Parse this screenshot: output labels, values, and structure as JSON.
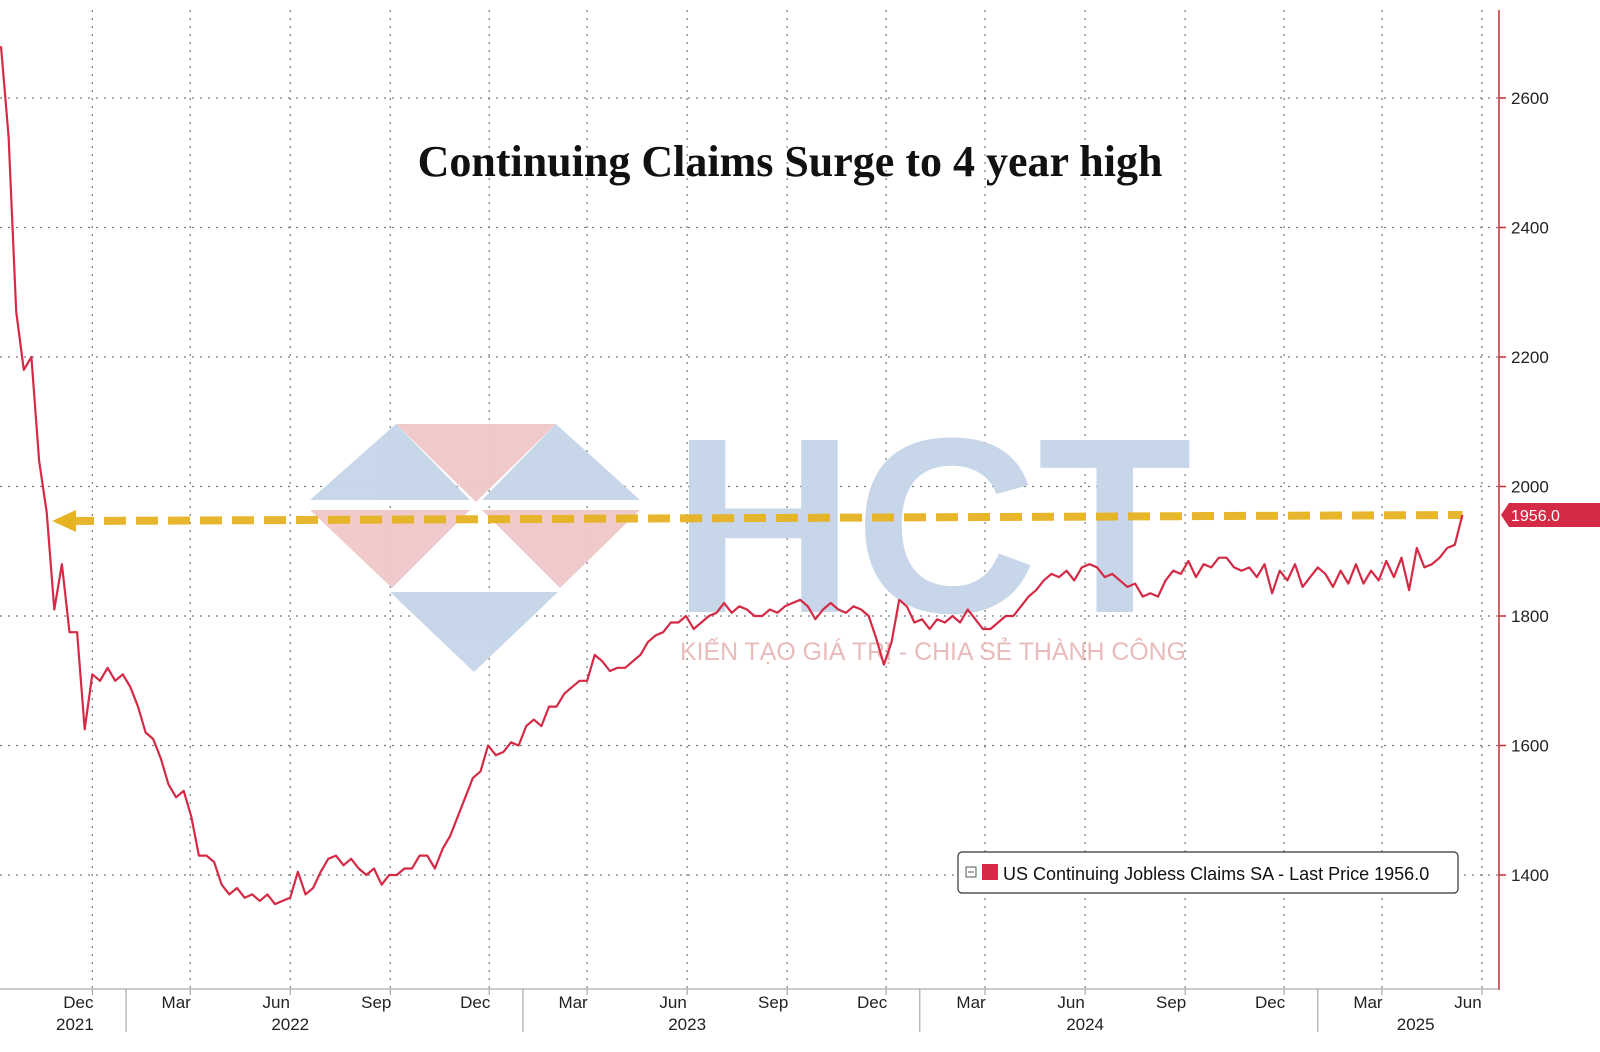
{
  "chart_data": {
    "type": "line",
    "title": "Continuing Claims Surge to 4 year high",
    "y_ticks": [
      1400,
      1600,
      1800,
      2000,
      2200,
      2400,
      2600
    ],
    "ylim": [
      1230,
      2730
    ],
    "y_axis_position": "right",
    "grid": true,
    "x_months": [
      {
        "label": "Dec",
        "date": "2021-12-01"
      },
      {
        "label": "Mar",
        "date": "2022-03-01"
      },
      {
        "label": "Jun",
        "date": "2022-06-01"
      },
      {
        "label": "Sep",
        "date": "2022-09-01"
      },
      {
        "label": "Dec",
        "date": "2022-12-01"
      },
      {
        "label": "Mar",
        "date": "2023-03-01"
      },
      {
        "label": "Jun",
        "date": "2023-06-01"
      },
      {
        "label": "Sep",
        "date": "2023-09-01"
      },
      {
        "label": "Dec",
        "date": "2023-12-01"
      },
      {
        "label": "Mar",
        "date": "2024-03-01"
      },
      {
        "label": "Jun",
        "date": "2024-06-01"
      },
      {
        "label": "Sep",
        "date": "2024-09-01"
      },
      {
        "label": "Dec",
        "date": "2024-12-01"
      },
      {
        "label": "Mar",
        "date": "2025-03-01"
      },
      {
        "label": "Jun",
        "date": "2025-06-01"
      }
    ],
    "x_years": [
      {
        "label": "2021",
        "date": "2021-11-15"
      },
      {
        "label": "2022",
        "date": "2022-06-01"
      },
      {
        "label": "2023",
        "date": "2023-06-01"
      },
      {
        "label": "2024",
        "date": "2024-06-01"
      },
      {
        "label": "2025",
        "date": "2025-04-01"
      }
    ],
    "series": [
      {
        "name": "US Continuing Jobless Claims SA",
        "color": "#d42a45",
        "points": [
          [
            "2021-09-08",
            2680
          ],
          [
            "2021-09-15",
            2540
          ],
          [
            "2021-09-22",
            2270
          ],
          [
            "2021-09-29",
            2180
          ],
          [
            "2021-10-06",
            2200
          ],
          [
            "2021-10-13",
            2040
          ],
          [
            "2021-10-20",
            1960
          ],
          [
            "2021-10-27",
            1810
          ],
          [
            "2021-11-03",
            1880
          ],
          [
            "2021-11-10",
            1775
          ],
          [
            "2021-11-17",
            1775
          ],
          [
            "2021-11-24",
            1625
          ],
          [
            "2021-12-01",
            1710
          ],
          [
            "2021-12-08",
            1700
          ],
          [
            "2021-12-15",
            1720
          ],
          [
            "2021-12-22",
            1700
          ],
          [
            "2021-12-29",
            1710
          ],
          [
            "2022-01-05",
            1690
          ],
          [
            "2022-01-12",
            1660
          ],
          [
            "2022-01-19",
            1620
          ],
          [
            "2022-01-26",
            1610
          ],
          [
            "2022-02-02",
            1580
          ],
          [
            "2022-02-09",
            1540
          ],
          [
            "2022-02-16",
            1520
          ],
          [
            "2022-02-23",
            1530
          ],
          [
            "2022-03-02",
            1490
          ],
          [
            "2022-03-09",
            1430
          ],
          [
            "2022-03-16",
            1430
          ],
          [
            "2022-03-23",
            1420
          ],
          [
            "2022-03-30",
            1385
          ],
          [
            "2022-04-06",
            1370
          ],
          [
            "2022-04-13",
            1380
          ],
          [
            "2022-04-20",
            1365
          ],
          [
            "2022-04-27",
            1370
          ],
          [
            "2022-05-04",
            1360
          ],
          [
            "2022-05-11",
            1370
          ],
          [
            "2022-05-18",
            1355
          ],
          [
            "2022-05-25",
            1360
          ],
          [
            "2022-06-01",
            1365
          ],
          [
            "2022-06-08",
            1405
          ],
          [
            "2022-06-15",
            1370
          ],
          [
            "2022-06-22",
            1380
          ],
          [
            "2022-06-29",
            1405
          ],
          [
            "2022-07-06",
            1425
          ],
          [
            "2022-07-13",
            1430
          ],
          [
            "2022-07-20",
            1415
          ],
          [
            "2022-07-27",
            1425
          ],
          [
            "2022-08-03",
            1410
          ],
          [
            "2022-08-10",
            1400
          ],
          [
            "2022-08-17",
            1410
          ],
          [
            "2022-08-24",
            1385
          ],
          [
            "2022-08-31",
            1400
          ],
          [
            "2022-09-07",
            1400
          ],
          [
            "2022-09-14",
            1410
          ],
          [
            "2022-09-21",
            1410
          ],
          [
            "2022-09-28",
            1430
          ],
          [
            "2022-10-05",
            1430
          ],
          [
            "2022-10-12",
            1410
          ],
          [
            "2022-10-19",
            1440
          ],
          [
            "2022-10-26",
            1460
          ],
          [
            "2022-11-02",
            1490
          ],
          [
            "2022-11-09",
            1520
          ],
          [
            "2022-11-16",
            1550
          ],
          [
            "2022-11-23",
            1560
          ],
          [
            "2022-11-30",
            1600
          ],
          [
            "2022-12-07",
            1585
          ],
          [
            "2022-12-14",
            1590
          ],
          [
            "2022-12-21",
            1605
          ],
          [
            "2022-12-28",
            1600
          ],
          [
            "2023-01-04",
            1630
          ],
          [
            "2023-01-11",
            1640
          ],
          [
            "2023-01-18",
            1630
          ],
          [
            "2023-01-25",
            1660
          ],
          [
            "2023-02-01",
            1660
          ],
          [
            "2023-02-08",
            1680
          ],
          [
            "2023-02-15",
            1690
          ],
          [
            "2023-02-22",
            1700
          ],
          [
            "2023-03-01",
            1700
          ],
          [
            "2023-03-08",
            1740
          ],
          [
            "2023-03-15",
            1730
          ],
          [
            "2023-03-22",
            1715
          ],
          [
            "2023-03-29",
            1720
          ],
          [
            "2023-04-05",
            1720
          ],
          [
            "2023-04-12",
            1730
          ],
          [
            "2023-04-19",
            1740
          ],
          [
            "2023-04-26",
            1760
          ],
          [
            "2023-05-03",
            1770
          ],
          [
            "2023-05-10",
            1775
          ],
          [
            "2023-05-17",
            1790
          ],
          [
            "2023-05-24",
            1790
          ],
          [
            "2023-05-31",
            1800
          ],
          [
            "2023-06-07",
            1780
          ],
          [
            "2023-06-14",
            1790
          ],
          [
            "2023-06-21",
            1800
          ],
          [
            "2023-06-28",
            1805
          ],
          [
            "2023-07-05",
            1820
          ],
          [
            "2023-07-12",
            1805
          ],
          [
            "2023-07-19",
            1815
          ],
          [
            "2023-07-26",
            1810
          ],
          [
            "2023-08-02",
            1800
          ],
          [
            "2023-08-09",
            1800
          ],
          [
            "2023-08-16",
            1810
          ],
          [
            "2023-08-23",
            1805
          ],
          [
            "2023-08-30",
            1815
          ],
          [
            "2023-09-06",
            1820
          ],
          [
            "2023-09-13",
            1825
          ],
          [
            "2023-09-20",
            1815
          ],
          [
            "2023-09-27",
            1795
          ],
          [
            "2023-10-04",
            1810
          ],
          [
            "2023-10-11",
            1820
          ],
          [
            "2023-10-18",
            1810
          ],
          [
            "2023-10-25",
            1805
          ],
          [
            "2023-11-01",
            1815
          ],
          [
            "2023-11-08",
            1810
          ],
          [
            "2023-11-15",
            1800
          ],
          [
            "2023-11-22",
            1765
          ],
          [
            "2023-11-29",
            1725
          ],
          [
            "2023-12-06",
            1760
          ],
          [
            "2023-12-13",
            1825
          ],
          [
            "2023-12-20",
            1815
          ],
          [
            "2023-12-27",
            1790
          ],
          [
            "2024-01-03",
            1795
          ],
          [
            "2024-01-10",
            1780
          ],
          [
            "2024-01-17",
            1795
          ],
          [
            "2024-01-24",
            1790
          ],
          [
            "2024-01-31",
            1800
          ],
          [
            "2024-02-07",
            1790
          ],
          [
            "2024-02-14",
            1810
          ],
          [
            "2024-02-21",
            1795
          ],
          [
            "2024-02-28",
            1780
          ],
          [
            "2024-03-06",
            1780
          ],
          [
            "2024-03-13",
            1790
          ],
          [
            "2024-03-20",
            1800
          ],
          [
            "2024-03-27",
            1800
          ],
          [
            "2024-04-03",
            1815
          ],
          [
            "2024-04-10",
            1830
          ],
          [
            "2024-04-17",
            1840
          ],
          [
            "2024-04-24",
            1855
          ],
          [
            "2024-05-01",
            1865
          ],
          [
            "2024-05-08",
            1860
          ],
          [
            "2024-05-15",
            1870
          ],
          [
            "2024-05-22",
            1855
          ],
          [
            "2024-05-29",
            1875
          ],
          [
            "2024-06-05",
            1880
          ],
          [
            "2024-06-12",
            1875
          ],
          [
            "2024-06-19",
            1860
          ],
          [
            "2024-06-26",
            1865
          ],
          [
            "2024-07-03",
            1855
          ],
          [
            "2024-07-10",
            1845
          ],
          [
            "2024-07-17",
            1850
          ],
          [
            "2024-07-24",
            1830
          ],
          [
            "2024-07-31",
            1835
          ],
          [
            "2024-08-07",
            1830
          ],
          [
            "2024-08-14",
            1855
          ],
          [
            "2024-08-21",
            1870
          ],
          [
            "2024-08-28",
            1865
          ],
          [
            "2024-09-04",
            1885
          ],
          [
            "2024-09-11",
            1860
          ],
          [
            "2024-09-18",
            1880
          ],
          [
            "2024-09-25",
            1875
          ],
          [
            "2024-10-02",
            1890
          ],
          [
            "2024-10-09",
            1890
          ],
          [
            "2024-10-16",
            1875
          ],
          [
            "2024-10-23",
            1870
          ],
          [
            "2024-10-30",
            1875
          ],
          [
            "2024-11-06",
            1860
          ],
          [
            "2024-11-13",
            1880
          ],
          [
            "2024-11-20",
            1835
          ],
          [
            "2024-11-27",
            1870
          ],
          [
            "2024-12-04",
            1855
          ],
          [
            "2024-12-11",
            1880
          ],
          [
            "2024-12-18",
            1845
          ],
          [
            "2024-12-25",
            1860
          ],
          [
            "2025-01-01",
            1875
          ],
          [
            "2025-01-08",
            1865
          ],
          [
            "2025-01-15",
            1845
          ],
          [
            "2025-01-22",
            1870
          ],
          [
            "2025-01-29",
            1850
          ],
          [
            "2025-02-05",
            1880
          ],
          [
            "2025-02-12",
            1850
          ],
          [
            "2025-02-19",
            1870
          ],
          [
            "2025-02-26",
            1855
          ],
          [
            "2025-03-05",
            1885
          ],
          [
            "2025-03-12",
            1860
          ],
          [
            "2025-03-19",
            1890
          ],
          [
            "2025-03-26",
            1840
          ],
          [
            "2025-04-02",
            1905
          ],
          [
            "2025-04-09",
            1875
          ],
          [
            "2025-04-16",
            1880
          ],
          [
            "2025-04-23",
            1890
          ],
          [
            "2025-04-30",
            1905
          ],
          [
            "2025-05-07",
            1910
          ],
          [
            "2025-05-14",
            1956
          ]
        ]
      }
    ],
    "reference_line": {
      "value": 1956,
      "color": "#e6b323",
      "style": "dashed-arrow-left"
    },
    "last_value_label": "1956.0",
    "legend": {
      "text": "US Continuing Jobless Claims SA - Last Price 1956.0",
      "swatch_color": "#d42a45",
      "position": "bottom-right"
    }
  },
  "watermark": {
    "logo_text": "HCT",
    "tagline": "KIẾN TẠO GIÁ TRỊ - CHIA SẺ THÀNH CÔNG",
    "colors": {
      "blue": "#c5d5e8",
      "red": "#f0c8c8"
    }
  }
}
